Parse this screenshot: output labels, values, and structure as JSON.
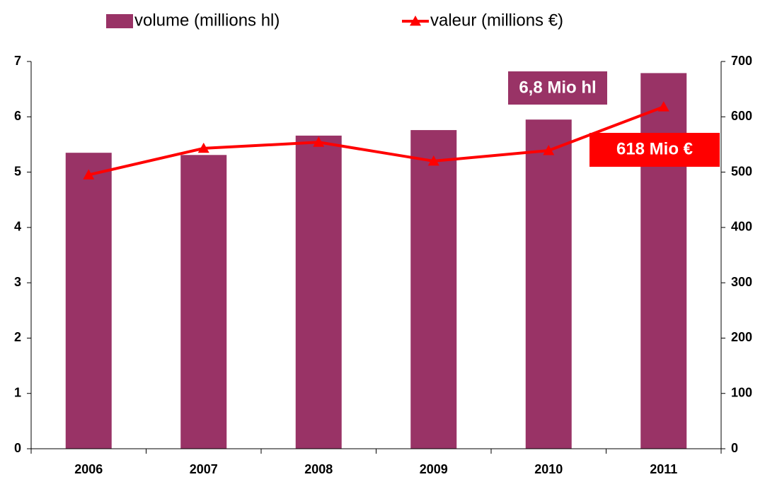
{
  "chart_data": {
    "type": "bar",
    "categories": [
      "2006",
      "2007",
      "2008",
      "2009",
      "2010",
      "2011"
    ],
    "series": [
      {
        "name": "volume (millions hl)",
        "color": "#993366",
        "type": "bar",
        "values": [
          5.35,
          5.31,
          5.66,
          5.76,
          5.95,
          6.79
        ]
      },
      {
        "name": "valeur (millions €)",
        "color": "#ff0000",
        "type": "line",
        "axis": "y2",
        "values": [
          495,
          543,
          554,
          520,
          539,
          618
        ]
      }
    ],
    "ylim": [
      0,
      7
    ],
    "yticks": [
      0,
      1,
      2,
      3,
      4,
      5,
      6,
      7
    ],
    "y2lim": [
      0,
      700
    ],
    "y2ticks": [
      0,
      100,
      200,
      300,
      400,
      500,
      600,
      700
    ],
    "annotations": [
      {
        "text": "6,8 Mio hl"
      },
      {
        "text": "618 Mio €"
      }
    ],
    "legend": "top"
  }
}
